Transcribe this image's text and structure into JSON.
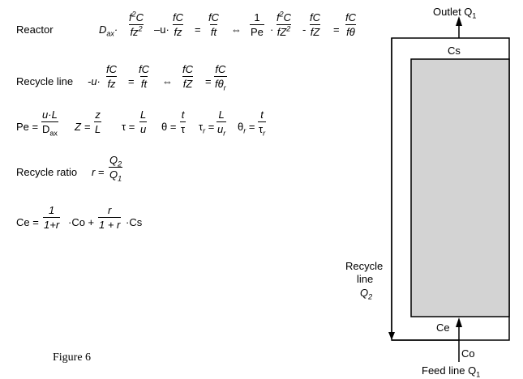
{
  "equations": {
    "reactor_label": "Reactor",
    "recycle_line_label": "Recycle line",
    "recycle_ratio_label": "Recycle ratio",
    "figure_caption": "Figure 6"
  },
  "diagram": {
    "outlet_label": "Outlet Q",
    "outlet_sub": "1",
    "cs_label": "Cs",
    "ce_label": "Ce",
    "co_label": "Co",
    "feed_label": "Feed line Q",
    "feed_sub": "1",
    "recycle_label_1": "Recycle",
    "recycle_label_2": "line",
    "recycle_label_3": "Q",
    "recycle_sub": "2",
    "reactor_fill": "#d3d3d3"
  }
}
